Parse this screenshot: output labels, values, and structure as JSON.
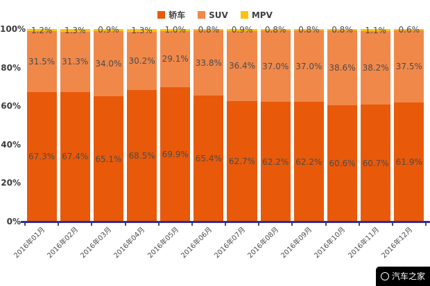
{
  "chart_data": {
    "type": "bar",
    "stacked": true,
    "percent_stacked": true,
    "unit": "%",
    "title": "",
    "xlabel": "",
    "ylabel": "",
    "ylim": [
      0,
      100
    ],
    "yticks": [
      "100%",
      "80%",
      "60%",
      "40%",
      "20%",
      "0%"
    ],
    "grid": false,
    "legend_position": "top",
    "categories": [
      "2016年01月",
      "2016年02月",
      "2016年03月",
      "2016年04月",
      "2016年05月",
      "2016年06月",
      "2016年07月",
      "2016年08月",
      "2016年09月",
      "2016年10月",
      "2016年11月",
      "2016年12月"
    ],
    "series": [
      {
        "name": "轿车",
        "color": "#e8590a",
        "values": [
          67.3,
          67.4,
          65.1,
          68.5,
          69.9,
          65.4,
          62.7,
          62.2,
          62.2,
          60.6,
          60.7,
          61.9
        ]
      },
      {
        "name": "SUV",
        "color": "#f0884a",
        "values": [
          31.5,
          31.3,
          34.0,
          30.2,
          29.1,
          33.8,
          36.4,
          37.0,
          37.0,
          38.6,
          38.2,
          37.5
        ]
      },
      {
        "name": "MPV",
        "color": "#ffc10e",
        "values": [
          1.2,
          1.3,
          0.9,
          1.3,
          1.0,
          0.8,
          0.9,
          0.8,
          0.8,
          0.8,
          1.1,
          0.6
        ]
      }
    ],
    "axis_line_color": "#2e2e9e",
    "data_label_color": "#4c4c4c"
  },
  "watermark": {
    "text": "汽车之家"
  }
}
